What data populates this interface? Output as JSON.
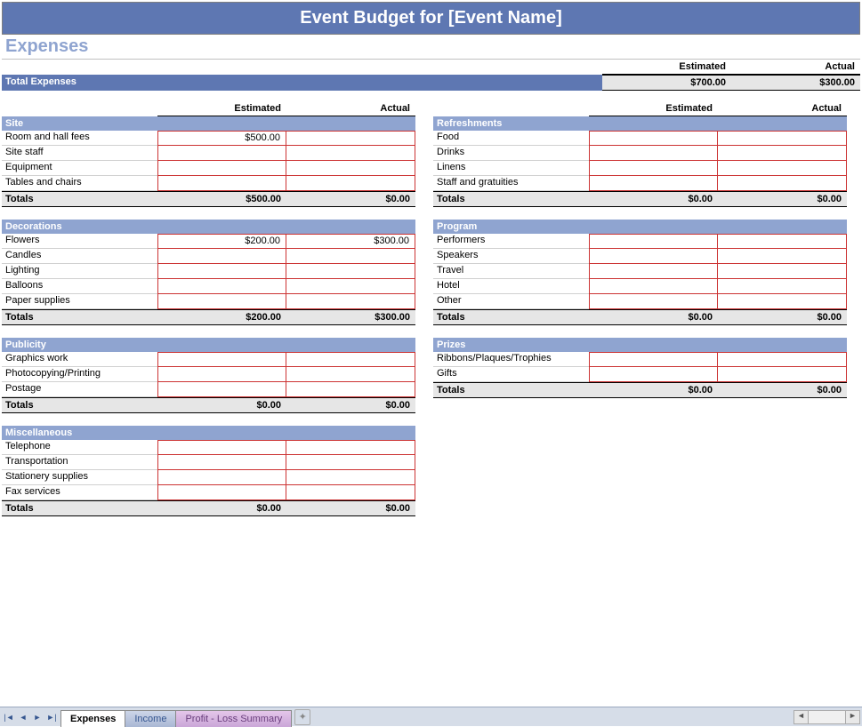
{
  "colors": {
    "title_bg": "#5e77b2",
    "section_title": "#8fa4d0",
    "cat_header_bg": "#8fa4d0",
    "totals_bg": "#e6e6e6",
    "cell_border": "#cc3333",
    "tab_bar_bg": "#d6dde8"
  },
  "title": "Event Budget for [Event Name]",
  "section": "Expenses",
  "headers": {
    "estimated": "Estimated",
    "actual": "Actual",
    "totals": "Totals"
  },
  "total_expenses": {
    "label": "Total Expenses",
    "estimated": "$700.00",
    "actual": "$300.00"
  },
  "left": [
    {
      "name": "Site",
      "rows": [
        {
          "label": "Room and hall fees",
          "estimated": "$500.00",
          "actual": ""
        },
        {
          "label": "Site staff",
          "estimated": "",
          "actual": ""
        },
        {
          "label": "Equipment",
          "estimated": "",
          "actual": ""
        },
        {
          "label": "Tables and chairs",
          "estimated": "",
          "actual": ""
        }
      ],
      "totals": {
        "estimated": "$500.00",
        "actual": "$0.00"
      }
    },
    {
      "name": "Decorations",
      "rows": [
        {
          "label": "Flowers",
          "estimated": "$200.00",
          "actual": "$300.00"
        },
        {
          "label": "Candles",
          "estimated": "",
          "actual": ""
        },
        {
          "label": "Lighting",
          "estimated": "",
          "actual": ""
        },
        {
          "label": "Balloons",
          "estimated": "",
          "actual": ""
        },
        {
          "label": "Paper supplies",
          "estimated": "",
          "actual": ""
        }
      ],
      "totals": {
        "estimated": "$200.00",
        "actual": "$300.00"
      }
    },
    {
      "name": "Publicity",
      "rows": [
        {
          "label": "Graphics work",
          "estimated": "",
          "actual": ""
        },
        {
          "label": "Photocopying/Printing",
          "estimated": "",
          "actual": ""
        },
        {
          "label": "Postage",
          "estimated": "",
          "actual": ""
        }
      ],
      "totals": {
        "estimated": "$0.00",
        "actual": "$0.00"
      }
    },
    {
      "name": "Miscellaneous",
      "rows": [
        {
          "label": "Telephone",
          "estimated": "",
          "actual": ""
        },
        {
          "label": "Transportation",
          "estimated": "",
          "actual": ""
        },
        {
          "label": "Stationery supplies",
          "estimated": "",
          "actual": ""
        },
        {
          "label": "Fax services",
          "estimated": "",
          "actual": ""
        }
      ],
      "totals": {
        "estimated": "$0.00",
        "actual": "$0.00"
      }
    }
  ],
  "right": [
    {
      "name": "Refreshments",
      "rows": [
        {
          "label": "Food",
          "estimated": "",
          "actual": ""
        },
        {
          "label": "Drinks",
          "estimated": "",
          "actual": ""
        },
        {
          "label": "Linens",
          "estimated": "",
          "actual": ""
        },
        {
          "label": "Staff and gratuities",
          "estimated": "",
          "actual": ""
        }
      ],
      "totals": {
        "estimated": "$0.00",
        "actual": "$0.00"
      }
    },
    {
      "name": "Program",
      "rows": [
        {
          "label": "Performers",
          "estimated": "",
          "actual": ""
        },
        {
          "label": "Speakers",
          "estimated": "",
          "actual": ""
        },
        {
          "label": "Travel",
          "estimated": "",
          "actual": ""
        },
        {
          "label": "Hotel",
          "estimated": "",
          "actual": ""
        },
        {
          "label": "Other",
          "estimated": "",
          "actual": ""
        }
      ],
      "totals": {
        "estimated": "$0.00",
        "actual": "$0.00"
      }
    },
    {
      "name": "Prizes",
      "rows": [
        {
          "label": "Ribbons/Plaques/Trophies",
          "estimated": "",
          "actual": ""
        },
        {
          "label": "Gifts",
          "estimated": "",
          "actual": ""
        }
      ],
      "totals": {
        "estimated": "$0.00",
        "actual": "$0.00"
      }
    }
  ],
  "tabs": [
    {
      "label": "Expenses",
      "active": true
    },
    {
      "label": "Income",
      "active": false
    },
    {
      "label": "Profit - Loss Summary",
      "active": false,
      "purple": true
    }
  ]
}
